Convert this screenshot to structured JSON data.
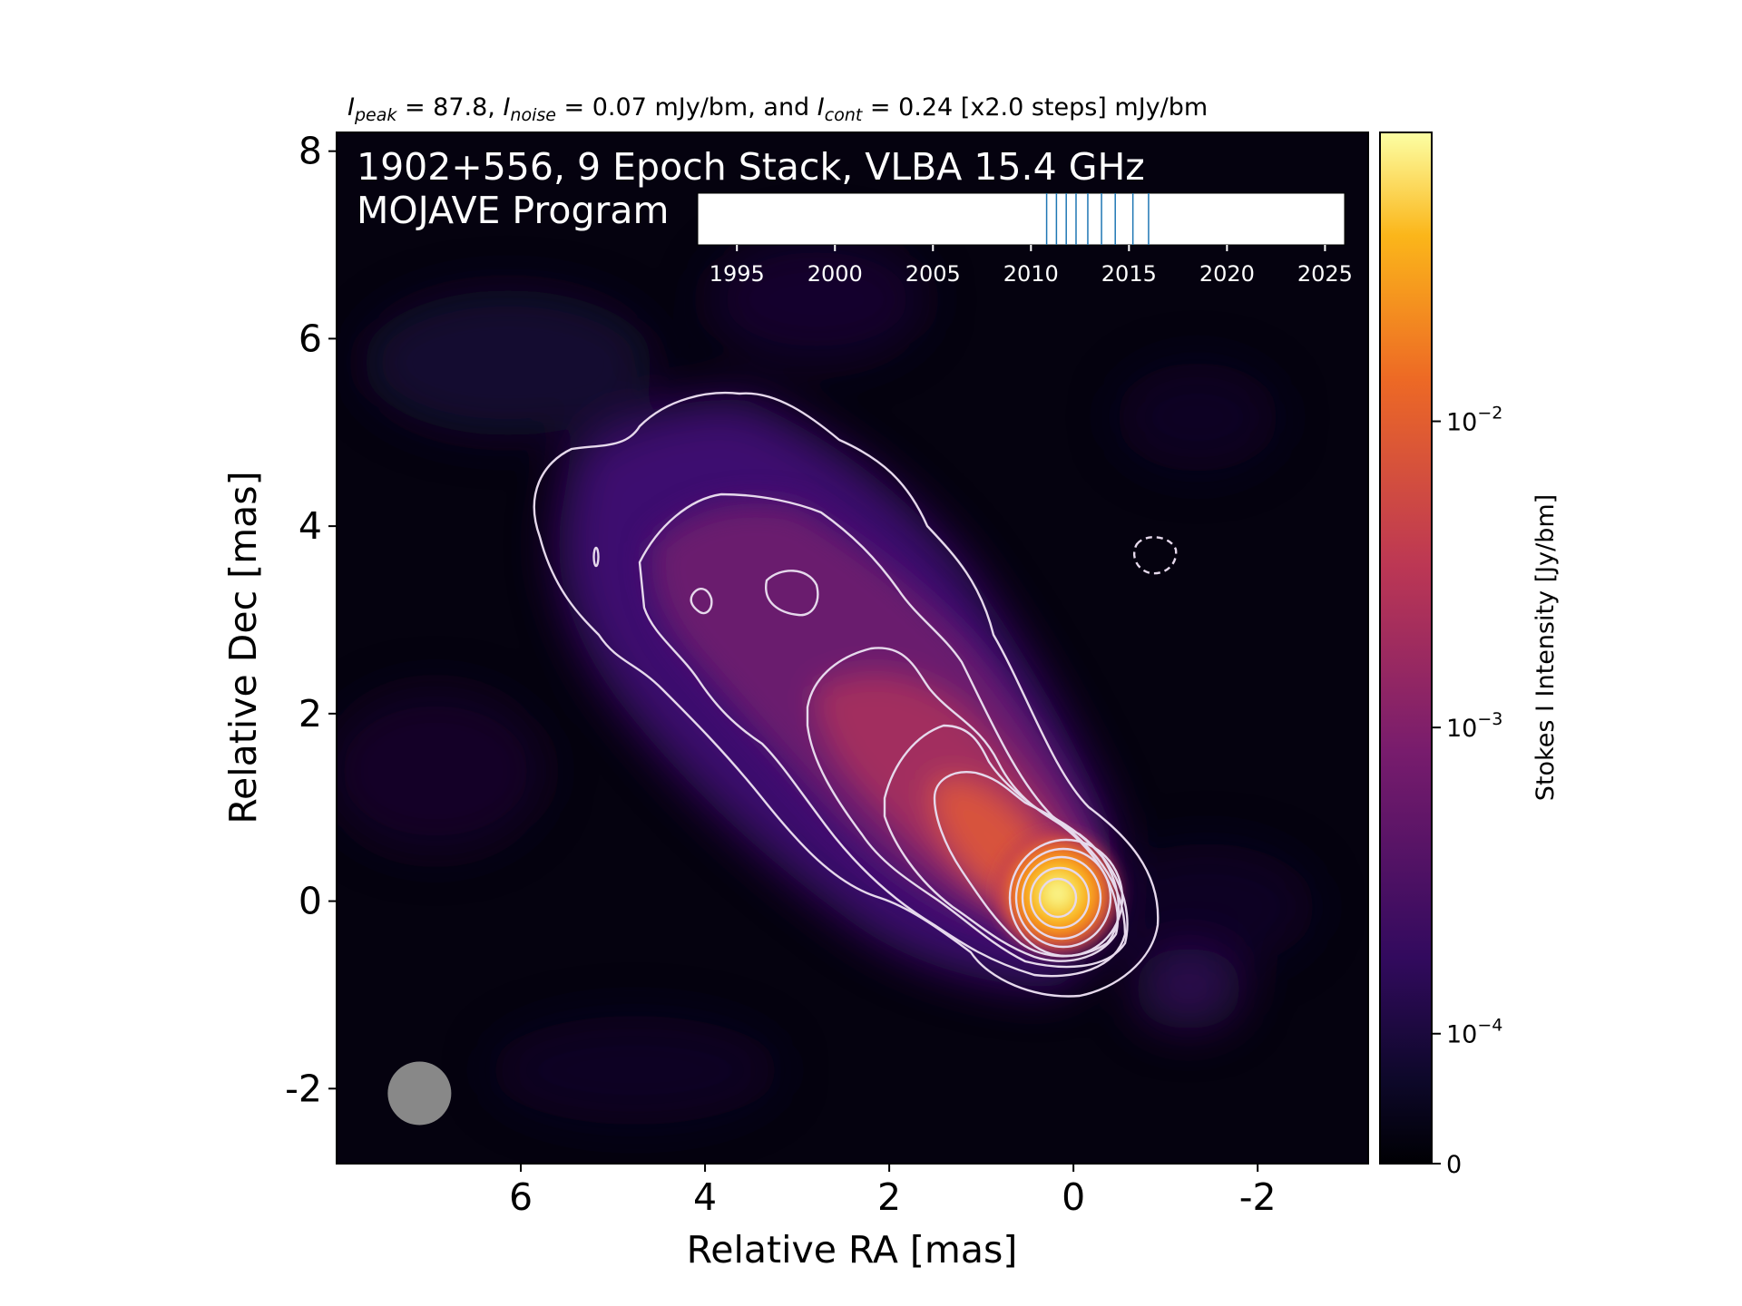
{
  "chart_data": {
    "type": "heatmap",
    "header": {
      "peak_sym": "I",
      "peak_sub": "peak",
      "peak_text": " = 87.8, ",
      "noise_sym": "I",
      "noise_sub": "noise",
      "noise_text": " = 0.07 mJy/bm, and ",
      "cont_sym": "I",
      "cont_sub": "cont",
      "cont_text": " = 0.24 [x2.0 steps] mJy/bm"
    },
    "source_line": "1902+556, 9 Epoch Stack, VLBA 15.4 GHz",
    "program_line": "MOJAVE Program",
    "xlabel": "Relative RA [mas]",
    "ylabel": "Relative Dec [mas]",
    "xlim": [
      8.0,
      -3.2
    ],
    "ylim": [
      -2.8,
      8.2
    ],
    "x_ticks": [
      6,
      4,
      2,
      0,
      -2
    ],
    "y_ticks": [
      8,
      6,
      4,
      2,
      0,
      -2
    ],
    "colorbar": {
      "label": "Stokes I Intensity [Jy/bm]",
      "ticks": [
        {
          "value": 0.01,
          "base": "10",
          "exp": "−2"
        },
        {
          "value": 0.001,
          "base": "10",
          "exp": "−3"
        },
        {
          "value": 0.0001,
          "base": "10",
          "exp": "−4"
        },
        {
          "value": 0,
          "base": "0",
          "exp": ""
        }
      ],
      "colors": [
        "#000004",
        "#320a5e",
        "#781c6d",
        "#bc3754",
        "#ed6925",
        "#fbb61a",
        "#fcffa4"
      ]
    },
    "core": {
      "x": 0.0,
      "y": 0.0,
      "peak_mjy": 87.8
    },
    "beam": {
      "x": 7.1,
      "y": -2.05,
      "color": "#888888"
    },
    "epoch_timeline": {
      "range": [
        1993,
        2026
      ],
      "ticks": [
        1995,
        2000,
        2005,
        2010,
        2015,
        2020,
        2025
      ],
      "epochs": [
        2010.8,
        2011.3,
        2011.8,
        2012.3,
        2012.9,
        2013.6,
        2014.3,
        2015.2,
        2016.0
      ],
      "epoch_color": "#1f77b4"
    }
  }
}
